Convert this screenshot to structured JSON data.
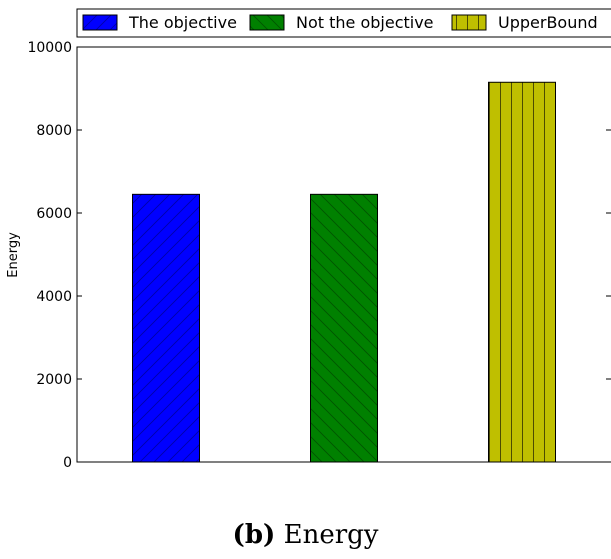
{
  "chart_data": {
    "type": "bar",
    "title": "",
    "xlabel": "",
    "ylabel": "Energy",
    "ylim": [
      0,
      10000
    ],
    "yticks": [
      0,
      2000,
      4000,
      6000,
      8000,
      10000
    ],
    "grid": false,
    "legend_position": "top",
    "series": [
      {
        "name": "The objective",
        "value": 6450,
        "color": "#0000ff",
        "hatch": "forward-diagonal"
      },
      {
        "name": "Not the objective",
        "value": 6450,
        "color": "#008000",
        "hatch": "back-diagonal"
      },
      {
        "name": "UpperBound",
        "value": 9150,
        "color": "#bfbf00",
        "hatch": "vertical"
      }
    ]
  },
  "caption": {
    "letter": "(b)",
    "text": "Energy"
  }
}
